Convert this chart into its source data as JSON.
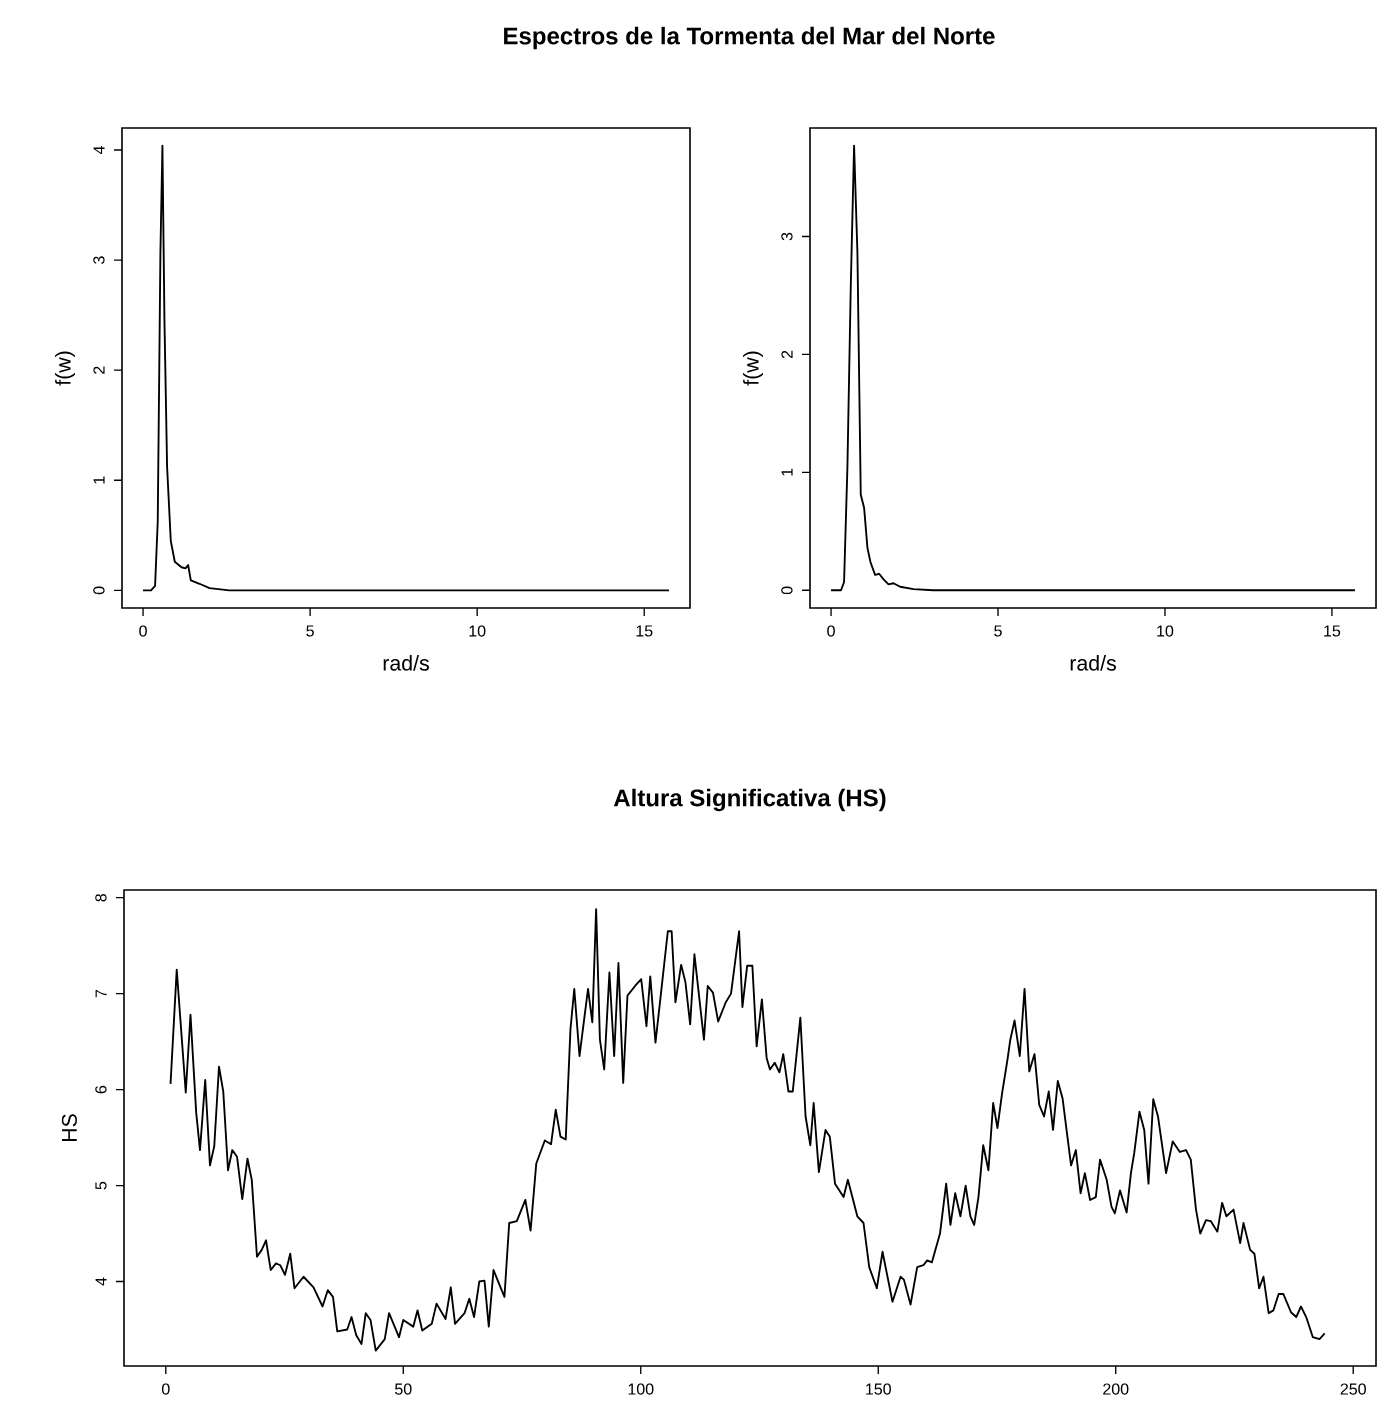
{
  "chart_data": [
    {
      "type": "line",
      "title": "Espectros de la Tormenta del Mar del Norte",
      "xlabel": "rad/s",
      "ylabel": "f(w)",
      "color": "#000000",
      "marker": "none",
      "grid": false,
      "x": [
        0,
        0.24,
        0.36,
        0.44,
        0.52,
        0.58,
        0.64,
        0.72,
        0.83,
        0.95,
        1.15,
        1.27,
        1.35,
        1.43,
        1.69,
        1.99,
        2.58,
        15.74
      ],
      "values": [
        0,
        0,
        0.04,
        0.63,
        3.07,
        4.04,
        2.46,
        1.12,
        0.45,
        0.26,
        0.21,
        0.2,
        0.23,
        0.09,
        0.06,
        0.02,
        0,
        0
      ],
      "xlim": [
        -0.63,
        16.37
      ],
      "ylim": [
        -0.16,
        4.2
      ],
      "xticks": [
        0,
        5,
        10,
        15
      ],
      "yticks": [
        0,
        1,
        2,
        3,
        4
      ]
    },
    {
      "type": "line",
      "xlabel": "rad/s",
      "ylabel": "f(w)",
      "color": "#000000",
      "marker": "none",
      "grid": false,
      "x": [
        0,
        0.3,
        0.39,
        0.49,
        0.59,
        0.69,
        0.79,
        0.89,
        0.99,
        1.09,
        1.18,
        1.32,
        1.44,
        1.58,
        1.72,
        1.87,
        2.07,
        2.47,
        3.06,
        15.69
      ],
      "values": [
        0,
        0,
        0.07,
        1.04,
        2.57,
        3.77,
        2.86,
        0.81,
        0.7,
        0.36,
        0.24,
        0.13,
        0.14,
        0.09,
        0.05,
        0.06,
        0.03,
        0.01,
        0,
        0
      ],
      "xlim": [
        -0.63,
        16.32
      ],
      "ylim": [
        -0.15,
        3.92
      ],
      "xticks": [
        0,
        5,
        10,
        15
      ],
      "yticks": [
        0,
        1,
        2,
        3
      ]
    },
    {
      "type": "line",
      "title": "Altura Significativa (HS)",
      "ylabel": "HS",
      "color": "#000000",
      "marker": "none",
      "grid": false,
      "x": [
        1,
        2.3,
        4.2,
        5.2,
        6.4,
        7.2,
        8.3,
        9.3,
        10.2,
        11.2,
        12.1,
        13.1,
        14.0,
        15.0,
        16.1,
        17.2,
        18.1,
        19.2,
        20.2,
        21.1,
        22.1,
        23.2,
        24.1,
        25.1,
        26.2,
        27.1,
        29.0,
        31.1,
        33.0,
        34.1,
        35.2,
        36.1,
        38.2,
        39.1,
        40.1,
        41.2,
        42.1,
        43.1,
        44.2,
        46.1,
        47.0,
        49.1,
        50.0,
        52.1,
        53.0,
        54.0,
        56.0,
        57.0,
        58.9,
        60.0,
        60.9,
        62.9,
        63.9,
        64.9,
        66.0,
        67.1,
        68.0,
        69.0,
        69.9,
        71.3,
        72.3,
        73.9,
        75.7,
        76.8,
        78.0,
        79.8,
        81.1,
        82.1,
        83.1,
        84.2,
        85.2,
        86.0,
        87.1,
        88.9,
        89.8,
        90.6,
        91.4,
        92.3,
        93.4,
        94.4,
        95.3,
        96.3,
        97.2,
        98.8,
        100.1,
        101.2,
        102.0,
        103.1,
        104.2,
        105.7,
        106.5,
        107.3,
        108.5,
        109.4,
        110.4,
        111.3,
        113.3,
        114.1,
        115.2,
        116.3,
        117.9,
        119.0,
        120.7,
        121.4,
        122.4,
        123.5,
        124.4,
        125.5,
        126.5,
        127.2,
        128.2,
        129.2,
        130.0,
        131.1,
        132.0,
        133.6,
        134.7,
        135.7,
        136.4,
        137.5,
        138.9,
        139.8,
        140.9,
        142.7,
        143.6,
        145.6,
        146.9,
        148.1,
        149.7,
        150.9,
        153.0,
        154.7,
        155.4,
        156.8,
        158.2,
        159.5,
        160.3,
        161.3,
        163.0,
        164.3,
        165.2,
        166.2,
        167.3,
        168.4,
        169.4,
        170.2,
        171.1,
        172.1,
        173.2,
        174.2,
        175.1,
        176.1,
        177.2,
        177.8,
        178.7,
        179.8,
        180.8,
        181.8,
        182.9,
        183.9,
        184.9,
        185.9,
        186.8,
        187.8,
        188.8,
        189.7,
        190.6,
        191.6,
        192.6,
        193.5,
        194.6,
        195.8,
        196.7,
        198.1,
        199.1,
        199.8,
        200.9,
        202.3,
        203.2,
        203.9,
        205.0,
        206.0,
        206.9,
        207.9,
        208.9,
        210.6,
        212.0,
        213.5,
        214.8,
        215.8,
        216.9,
        217.8,
        219.0,
        220.0,
        221.4,
        222.4,
        223.3,
        224.8,
        226.2,
        226.9,
        228.3,
        229.2,
        230.2,
        231.1,
        232.2,
        233.2,
        234.3,
        235.3,
        236.9,
        238.0,
        239.0,
        240.1,
        241.5,
        242.9,
        244.0
      ],
      "values": [
        6.06,
        7.25,
        5.97,
        6.78,
        5.76,
        5.37,
        6.1,
        5.21,
        5.41,
        6.24,
        5.98,
        5.16,
        5.37,
        5.3,
        4.86,
        5.28,
        5.06,
        4.26,
        4.33,
        4.43,
        4.12,
        4.19,
        4.17,
        4.07,
        4.29,
        3.93,
        4.05,
        3.94,
        3.74,
        3.91,
        3.84,
        3.48,
        3.5,
        3.63,
        3.44,
        3.35,
        3.67,
        3.6,
        3.28,
        3.4,
        3.67,
        3.42,
        3.6,
        3.53,
        3.7,
        3.49,
        3.56,
        3.77,
        3.61,
        3.94,
        3.56,
        3.67,
        3.82,
        3.63,
        4.0,
        4.01,
        3.53,
        4.12,
        4.01,
        3.84,
        4.61,
        4.63,
        4.85,
        4.53,
        5.23,
        5.47,
        5.43,
        5.79,
        5.51,
        5.48,
        6.63,
        7.05,
        6.35,
        7.05,
        6.7,
        7.88,
        6.52,
        6.21,
        7.22,
        6.35,
        7.32,
        6.07,
        6.98,
        7.08,
        7.15,
        6.66,
        7.18,
        6.49,
        6.98,
        7.65,
        7.65,
        6.91,
        7.3,
        7.12,
        6.68,
        7.41,
        6.52,
        7.08,
        7.01,
        6.71,
        6.91,
        7.0,
        7.65,
        6.86,
        7.29,
        7.29,
        6.45,
        6.94,
        6.33,
        6.21,
        6.28,
        6.18,
        6.37,
        5.98,
        5.98,
        6.75,
        5.72,
        5.42,
        5.86,
        5.14,
        5.58,
        5.51,
        5.02,
        4.88,
        5.06,
        4.68,
        4.61,
        4.15,
        3.93,
        4.31,
        3.79,
        4.05,
        4.02,
        3.76,
        4.15,
        4.17,
        4.22,
        4.2,
        4.5,
        5.02,
        4.59,
        4.92,
        4.68,
        5.0,
        4.68,
        4.59,
        4.88,
        5.42,
        5.16,
        5.86,
        5.6,
        5.97,
        6.31,
        6.52,
        6.72,
        6.35,
        7.05,
        6.19,
        6.37,
        5.84,
        5.72,
        5.98,
        5.58,
        6.09,
        5.91,
        5.56,
        5.21,
        5.37,
        4.92,
        5.13,
        4.85,
        4.88,
        5.27,
        5.06,
        4.78,
        4.71,
        4.95,
        4.72,
        5.13,
        5.34,
        5.77,
        5.58,
        5.02,
        5.9,
        5.72,
        5.13,
        5.46,
        5.35,
        5.37,
        5.27,
        4.75,
        4.5,
        4.64,
        4.63,
        4.52,
        4.82,
        4.68,
        4.75,
        4.4,
        4.61,
        4.33,
        4.29,
        3.93,
        4.05,
        3.67,
        3.7,
        3.87,
        3.87,
        3.68,
        3.63,
        3.74,
        3.63,
        3.42,
        3.4,
        3.46
      ],
      "xlim": [
        -8.8,
        254.8
      ],
      "ylim": [
        3.12,
        8.08
      ],
      "xticks": [
        0,
        50,
        100,
        150,
        200,
        250
      ],
      "yticks": [
        4,
        5,
        6,
        7,
        8
      ]
    }
  ]
}
